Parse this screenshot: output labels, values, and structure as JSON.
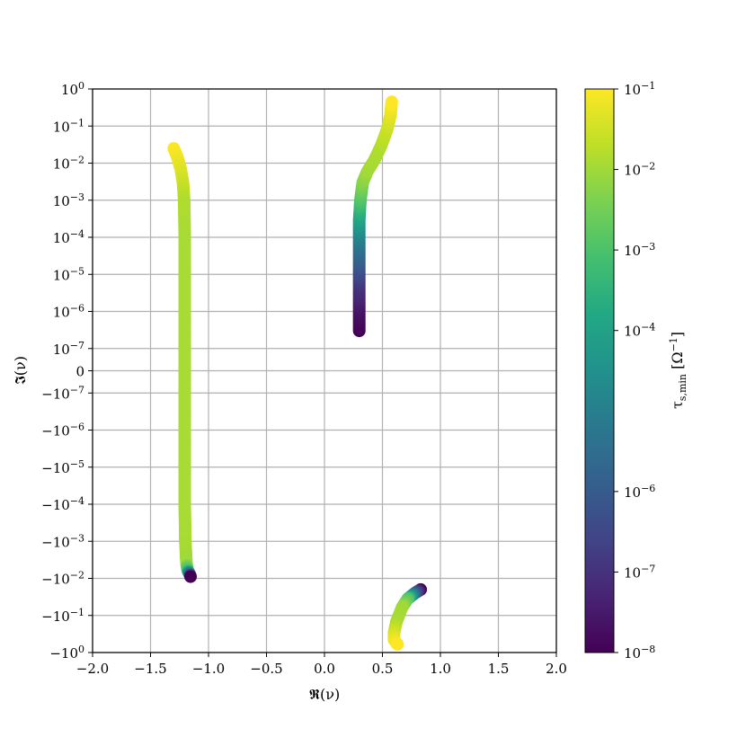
{
  "chart_data": {
    "type": "scatter",
    "title": "",
    "xlabel": "𝕽(ν)",
    "ylabel": "𝕴(ν)",
    "xlim": [
      -2.0,
      2.0
    ],
    "y_scale": "symlog",
    "y_linthresh": 1e-07,
    "ylim": [
      -1,
      1
    ],
    "grid": true,
    "x_ticks": [
      -2.0,
      -1.5,
      -1.0,
      -0.5,
      0.0,
      0.5,
      1.0,
      1.5,
      2.0
    ],
    "x_tick_labels": [
      "−2.0",
      "−1.5",
      "−1.0",
      "−0.5",
      "0.0",
      "0.5",
      "1.0",
      "1.5",
      "2.0"
    ],
    "y_ticks": [
      {
        "value": 1,
        "base": "10",
        "exp": "0"
      },
      {
        "value": 0.1,
        "base": "10",
        "exp": "−1"
      },
      {
        "value": 0.01,
        "base": "10",
        "exp": "−2"
      },
      {
        "value": 0.001,
        "base": "10",
        "exp": "−3"
      },
      {
        "value": 0.0001,
        "base": "10",
        "exp": "−4"
      },
      {
        "value": 1e-05,
        "base": "10",
        "exp": "−5"
      },
      {
        "value": 1e-06,
        "base": "10",
        "exp": "−6"
      },
      {
        "value": 1e-07,
        "base": "10",
        "exp": "−7"
      },
      {
        "value": 0,
        "base": "0",
        "exp": ""
      },
      {
        "value": -1e-07,
        "base": "−10",
        "exp": "−7"
      },
      {
        "value": -1e-06,
        "base": "−10",
        "exp": "−6"
      },
      {
        "value": -1e-05,
        "base": "−10",
        "exp": "−5"
      },
      {
        "value": -0.0001,
        "base": "−10",
        "exp": "−4"
      },
      {
        "value": -0.001,
        "base": "−10",
        "exp": "−3"
      },
      {
        "value": -0.01,
        "base": "−10",
        "exp": "−2"
      },
      {
        "value": -0.1,
        "base": "−10",
        "exp": "−1"
      },
      {
        "value": -1,
        "base": "−10",
        "exp": "0"
      }
    ],
    "colorbar": {
      "label": "τs,min [Ω−1]",
      "scale": "log",
      "colormap": "viridis",
      "range": [
        1e-08,
        0.1
      ],
      "ticks": [
        {
          "value": 1e-08,
          "base": "10",
          "exp": "−8"
        },
        {
          "value": 1e-07,
          "base": "10",
          "exp": "−7"
        },
        {
          "value": 1e-06,
          "base": "10",
          "exp": "−6"
        },
        {
          "value": 0.0001,
          "base": "10",
          "exp": "−4"
        },
        {
          "value": 0.001,
          "base": "10",
          "exp": "−3"
        },
        {
          "value": 0.01,
          "base": "10",
          "exp": "−2"
        },
        {
          "value": 0.1,
          "base": "10",
          "exp": "−1"
        }
      ]
    },
    "series": [
      {
        "points": [
          {
            "x": -1.3,
            "y": 0.025,
            "c": 0.1
          },
          {
            "x": -1.27,
            "y": 0.015,
            "c": 0.08
          },
          {
            "x": -1.24,
            "y": 0.007,
            "c": 0.05
          },
          {
            "x": -1.22,
            "y": 0.003,
            "c": 0.03
          },
          {
            "x": -1.21,
            "y": 0.001,
            "c": 0.015
          },
          {
            "x": -1.205,
            "y": 0.0001,
            "c": 0.012
          },
          {
            "x": -1.205,
            "y": 1e-05,
            "c": 0.012
          },
          {
            "x": -1.205,
            "y": 1e-06,
            "c": 0.012
          },
          {
            "x": -1.205,
            "y": 1e-07,
            "c": 0.012
          },
          {
            "x": -1.205,
            "y": 0,
            "c": 0.012
          },
          {
            "x": -1.205,
            "y": -1e-07,
            "c": 0.012
          },
          {
            "x": -1.205,
            "y": -1e-06,
            "c": 0.012
          },
          {
            "x": -1.205,
            "y": -1e-05,
            "c": 0.012
          },
          {
            "x": -1.205,
            "y": -0.0001,
            "c": 0.012
          },
          {
            "x": -1.2,
            "y": -0.001,
            "c": 0.012
          },
          {
            "x": -1.19,
            "y": -0.004,
            "c": 0.01
          },
          {
            "x": -1.18,
            "y": -0.006,
            "c": 0.001
          },
          {
            "x": -1.16,
            "y": -0.008,
            "c": 1e-06
          },
          {
            "x": -1.155,
            "y": -0.009,
            "c": 1e-08
          }
        ]
      },
      {
        "points": [
          {
            "x": 0.3,
            "y": 3e-07,
            "c": 1e-08
          },
          {
            "x": 0.3,
            "y": 1e-06,
            "c": 2e-08
          },
          {
            "x": 0.3,
            "y": 5e-06,
            "c": 1e-07
          },
          {
            "x": 0.3,
            "y": 2e-05,
            "c": 1e-06
          },
          {
            "x": 0.3,
            "y": 0.0001,
            "c": 1e-05
          },
          {
            "x": 0.3,
            "y": 0.0003,
            "c": 0.0001
          },
          {
            "x": 0.31,
            "y": 0.001,
            "c": 0.001
          },
          {
            "x": 0.33,
            "y": 0.003,
            "c": 0.005
          },
          {
            "x": 0.37,
            "y": 0.006,
            "c": 0.01
          },
          {
            "x": 0.43,
            "y": 0.012,
            "c": 0.012
          },
          {
            "x": 0.49,
            "y": 0.03,
            "c": 0.015
          },
          {
            "x": 0.54,
            "y": 0.08,
            "c": 0.025
          },
          {
            "x": 0.57,
            "y": 0.2,
            "c": 0.05
          },
          {
            "x": 0.58,
            "y": 0.45,
            "c": 0.1
          }
        ]
      },
      {
        "points": [
          {
            "x": 0.83,
            "y": -0.02,
            "c": 1e-08
          },
          {
            "x": 0.78,
            "y": -0.025,
            "c": 1e-06
          },
          {
            "x": 0.72,
            "y": -0.035,
            "c": 0.001
          },
          {
            "x": 0.67,
            "y": -0.06,
            "c": 0.01
          },
          {
            "x": 0.62,
            "y": -0.15,
            "c": 0.012
          },
          {
            "x": 0.6,
            "y": -0.3,
            "c": 0.03
          },
          {
            "x": 0.6,
            "y": -0.45,
            "c": 0.06
          },
          {
            "x": 0.62,
            "y": -0.55,
            "c": 0.08
          },
          {
            "x": 0.63,
            "y": -0.6,
            "c": 0.1
          }
        ]
      }
    ]
  }
}
